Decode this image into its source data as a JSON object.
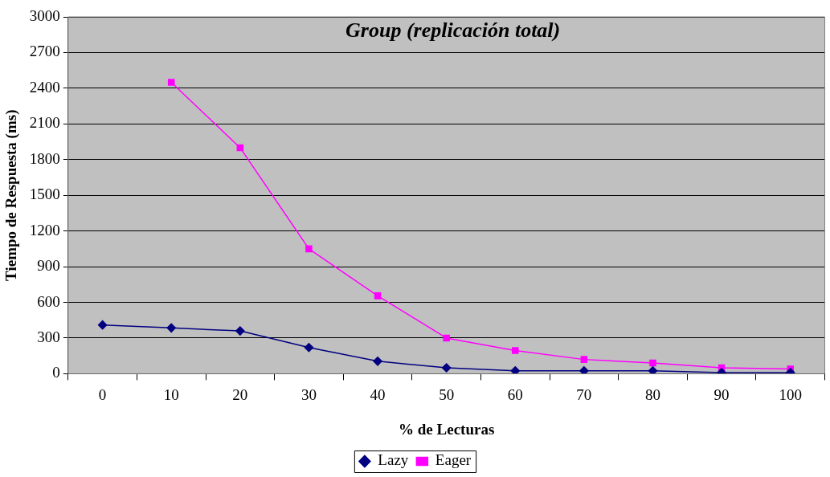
{
  "chart_data": {
    "type": "line",
    "title": "Group (replicación total)",
    "xlabel": "% de Lecturas",
    "ylabel": "Tiempo de Respuesta (ms)",
    "categories": [
      "0",
      "10",
      "20",
      "30",
      "40",
      "50",
      "60",
      "70",
      "80",
      "90",
      "100"
    ],
    "ylim": [
      0,
      3000
    ],
    "yticks": [
      0,
      300,
      600,
      900,
      1200,
      1500,
      1800,
      2100,
      2400,
      2700,
      3000
    ],
    "grid": "y",
    "legend": "bottom",
    "series": [
      {
        "name": "Lazy",
        "color": "#000080",
        "marker": "diamond",
        "values": [
          410,
          385,
          360,
          220,
          105,
          50,
          25,
          25,
          25,
          10,
          10
        ]
      },
      {
        "name": "Eager",
        "color": "#ff00ff",
        "marker": "square",
        "values": [
          null,
          2450,
          1900,
          1050,
          655,
          300,
          195,
          120,
          90,
          50,
          40
        ]
      }
    ]
  }
}
